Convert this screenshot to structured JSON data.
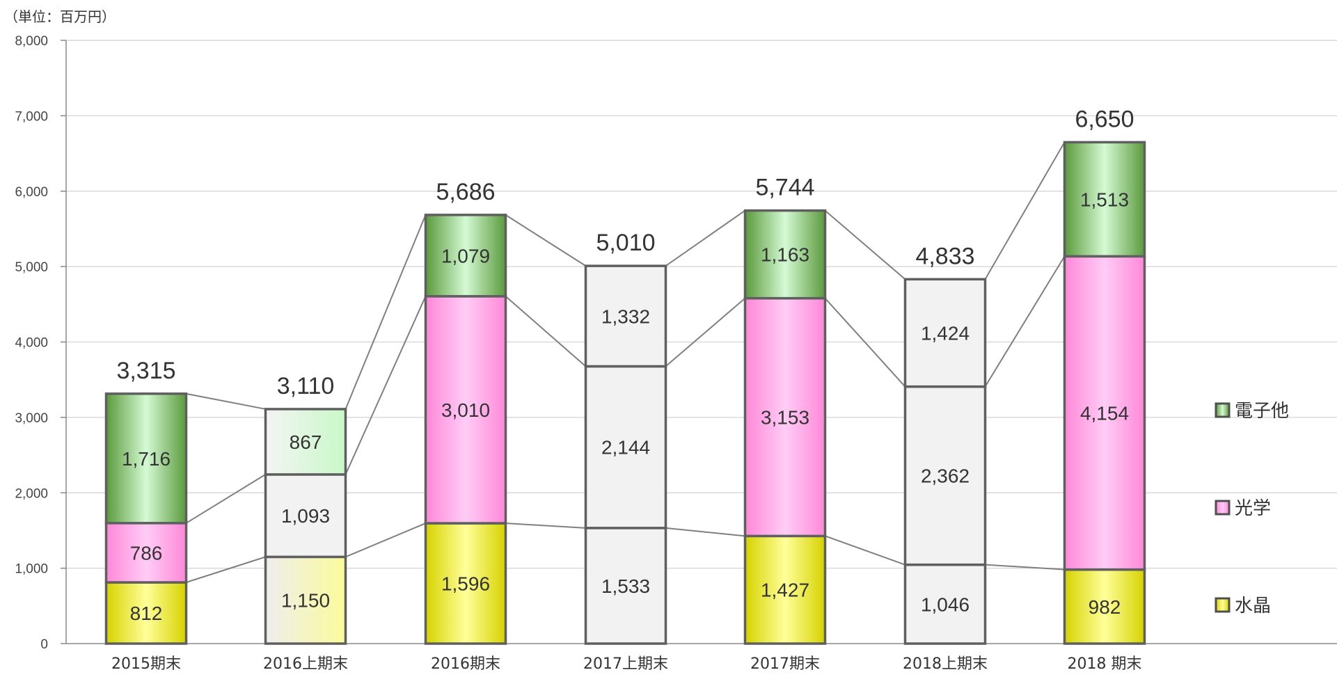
{
  "chart_data": {
    "type": "bar",
    "stacked": true,
    "unit_label": "（単位：百万円）",
    "categories": [
      "2015期末",
      "2016上期末",
      "2016期末",
      "2017上期末",
      "2017期末",
      "2018上期末",
      "2018 期末"
    ],
    "series": [
      {
        "name": "水晶",
        "values": [
          812,
          1150,
          1596,
          1533,
          1427,
          1046,
          982
        ],
        "color": "#f2f06a"
      },
      {
        "name": "光学",
        "values": [
          786,
          1093,
          3010,
          2144,
          3153,
          2362,
          4154
        ],
        "color": "#ff88d8"
      },
      {
        "name": "電子他",
        "values": [
          1716,
          867,
          1079,
          1332,
          1163,
          1424,
          1513
        ],
        "color": "#6aa84f"
      }
    ],
    "segment_labels": [
      [
        "812",
        "786",
        "1,716"
      ],
      [
        "1,150",
        "1,093",
        "867"
      ],
      [
        "1,596",
        "3,010",
        "1,079"
      ],
      [
        "1,533",
        "2,144",
        "1,332"
      ],
      [
        "1,427",
        "3,153",
        "1,163"
      ],
      [
        "1,046",
        "2,362",
        "1,424"
      ],
      [
        "982",
        "4,154",
        "1,513"
      ]
    ],
    "total_labels": [
      "3,315",
      "3,110",
      "5,686",
      "5,010",
      "5,744",
      "4,833",
      "6,650"
    ],
    "half_year_gray": [
      false,
      true,
      false,
      true,
      false,
      true,
      false
    ],
    "ylim": [
      0,
      8000
    ],
    "yticks": [
      0,
      1000,
      2000,
      3000,
      4000,
      5000,
      6000,
      7000,
      8000
    ],
    "ytick_labels": [
      "0",
      "1,000",
      "2,000",
      "3,000",
      "4,000",
      "5,000",
      "6,000",
      "7,000",
      "8,000"
    ],
    "legend_position": "right",
    "legend": [
      "電子他",
      "光学",
      "水晶"
    ],
    "grid": true
  }
}
